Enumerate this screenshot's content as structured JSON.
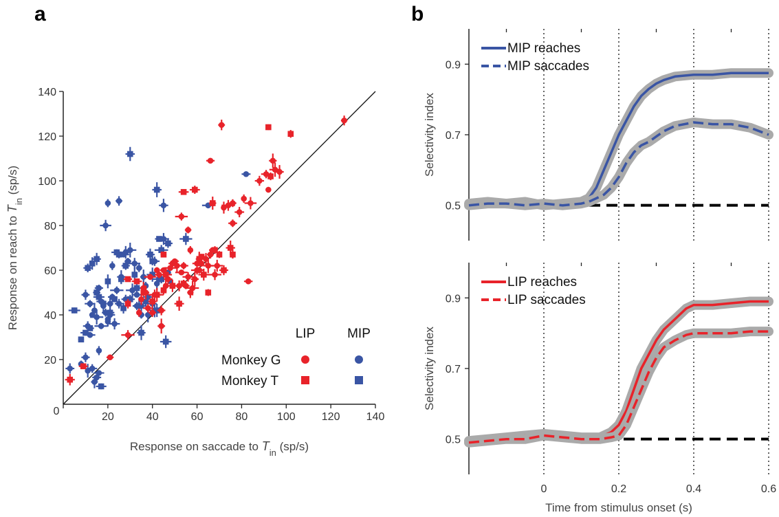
{
  "colors": {
    "lip": "#e8232a",
    "mip": "#3a55a4",
    "band": "#aaaaaa",
    "ref": "#000000"
  },
  "panel_a": {
    "letter": "a"
  },
  "panel_b": {
    "letter": "b"
  },
  "chart_data": [
    {
      "type": "scatter",
      "title": "",
      "xlabel": {
        "prefix": "Response on saccade to ",
        "var": "T",
        "sub": "in",
        "suffix": " (sp/s)"
      },
      "ylabel": {
        "prefix": "Response on reach to ",
        "var": "T",
        "sub": "in",
        "suffix": " (sp/s)"
      },
      "xlim": [
        0,
        140
      ],
      "ylim": [
        0,
        140
      ],
      "xticks": [
        0,
        20,
        40,
        60,
        80,
        100,
        120,
        140
      ],
      "yticks": [
        20,
        40,
        60,
        80,
        100,
        120,
        140
      ],
      "origin_label": "0",
      "unity_line": true,
      "legend": {
        "col_headers": [
          "LIP",
          "MIP"
        ],
        "rows": [
          {
            "label": "Monkey G",
            "marker": "circle"
          },
          {
            "label": "Monkey T",
            "marker": "square"
          }
        ],
        "placement": "bottom-right"
      },
      "series": [
        {
          "area": "MIP",
          "monkey": "G",
          "marker": "circle",
          "points": [
            [
              3,
              16
            ],
            [
              8,
              18
            ],
            [
              10,
              21
            ],
            [
              11,
              15
            ],
            [
              13,
              16
            ],
            [
              14,
              10
            ],
            [
              16,
              14
            ],
            [
              15,
              12
            ],
            [
              12,
              31
            ],
            [
              11,
              35
            ],
            [
              13,
              40
            ],
            [
              15,
              39
            ],
            [
              16,
              24
            ],
            [
              17,
              35
            ],
            [
              10,
              49
            ],
            [
              12,
              45
            ],
            [
              14,
              42
            ],
            [
              16,
              52
            ],
            [
              17,
              46
            ],
            [
              18,
              44
            ],
            [
              19,
              41
            ],
            [
              20,
              38
            ],
            [
              21,
              45
            ],
            [
              22,
              48
            ],
            [
              21,
              40
            ],
            [
              19,
              80
            ],
            [
              20,
              37
            ],
            [
              22,
              48
            ],
            [
              22,
              62
            ],
            [
              23,
              36
            ],
            [
              24,
              51
            ],
            [
              25,
              45
            ],
            [
              26,
              57
            ],
            [
              28,
              47
            ],
            [
              29,
              64
            ],
            [
              27,
              67
            ],
            [
              28,
              68
            ],
            [
              30,
              69
            ],
            [
              31,
              51
            ],
            [
              32,
              63
            ],
            [
              33,
              49
            ],
            [
              33,
              44
            ],
            [
              34,
              61
            ],
            [
              35,
              44
            ],
            [
              36,
              57
            ],
            [
              37,
              53
            ],
            [
              38,
              48
            ],
            [
              38,
              40
            ],
            [
              40,
              45
            ],
            [
              41,
              64
            ],
            [
              42,
              54
            ],
            [
              43,
              56
            ],
            [
              44,
              35
            ],
            [
              45,
              74
            ],
            [
              41,
              42
            ],
            [
              36,
              52
            ],
            [
              47,
              59
            ],
            [
              48,
              55
            ],
            [
              45,
              89
            ],
            [
              65,
              89
            ],
            [
              82,
              103
            ],
            [
              25,
              91
            ],
            [
              20,
              90
            ],
            [
              35,
              40
            ]
          ]
        },
        {
          "area": "MIP",
          "monkey": "T",
          "marker": "square",
          "points": [
            [
              5,
              42
            ],
            [
              8,
              29
            ],
            [
              10,
              32
            ],
            [
              12,
              34
            ],
            [
              11,
              61
            ],
            [
              13,
              63
            ],
            [
              15,
              65
            ],
            [
              15,
              50
            ],
            [
              16,
              48
            ],
            [
              18,
              45
            ],
            [
              20,
              55
            ],
            [
              23,
              47
            ],
            [
              25,
              67
            ],
            [
              27,
              43
            ],
            [
              28,
              62
            ],
            [
              30,
              112
            ],
            [
              30,
              47
            ],
            [
              32,
              58
            ],
            [
              33,
              52
            ],
            [
              34,
              44
            ],
            [
              35,
              32
            ],
            [
              37,
              46
            ],
            [
              39,
              67
            ],
            [
              40,
              58
            ],
            [
              42,
              96
            ],
            [
              42,
              42
            ],
            [
              43,
              74
            ],
            [
              44,
              69
            ],
            [
              44,
              56
            ],
            [
              46,
              28
            ],
            [
              47,
              72
            ],
            [
              55,
              74
            ],
            [
              40,
              64
            ],
            [
              21,
              41
            ],
            [
              17,
              8
            ],
            [
              24,
              68
            ],
            [
              26,
              56
            ]
          ]
        },
        {
          "area": "LIP",
          "monkey": "G",
          "marker": "circle",
          "points": [
            [
              21,
              21
            ],
            [
              29,
              31
            ],
            [
              34,
              41
            ],
            [
              35,
              47
            ],
            [
              36,
              52
            ],
            [
              37,
              50
            ],
            [
              38,
              43
            ],
            [
              39,
              57
            ],
            [
              40,
              41
            ],
            [
              41,
              49
            ],
            [
              42,
              60
            ],
            [
              43,
              58
            ],
            [
              44,
              42
            ],
            [
              45,
              60
            ],
            [
              46,
              53
            ],
            [
              47,
              56
            ],
            [
              48,
              61
            ],
            [
              49,
              63
            ],
            [
              50,
              64
            ],
            [
              51,
              62
            ],
            [
              53,
              59
            ],
            [
              54,
              62
            ],
            [
              55,
              53
            ],
            [
              56,
              57
            ],
            [
              57,
              50
            ],
            [
              58,
              52
            ],
            [
              59,
              56
            ],
            [
              60,
              60
            ],
            [
              62,
              63
            ],
            [
              64,
              65
            ],
            [
              65,
              62
            ],
            [
              66,
              67
            ],
            [
              67,
              69
            ],
            [
              68,
              58
            ],
            [
              69,
              62
            ],
            [
              71,
              125
            ],
            [
              72,
              88
            ],
            [
              74,
              89
            ],
            [
              76,
              90
            ],
            [
              79,
              86
            ],
            [
              81,
              92
            ],
            [
              84,
              90
            ],
            [
              88,
              100
            ],
            [
              91,
              103
            ],
            [
              92,
              96
            ],
            [
              94,
              109
            ],
            [
              95,
              105
            ],
            [
              97,
              104
            ],
            [
              66,
              109
            ],
            [
              53,
              84
            ],
            [
              56,
              78
            ],
            [
              57,
              69
            ],
            [
              44,
              35
            ],
            [
              52,
              53
            ],
            [
              60,
              63
            ],
            [
              83,
              55
            ],
            [
              76,
              81
            ],
            [
              126,
              127
            ],
            [
              61,
              60
            ]
          ]
        },
        {
          "area": "LIP",
          "monkey": "T",
          "marker": "square",
          "points": [
            [
              3,
              11
            ],
            [
              9,
              17
            ],
            [
              29,
              45
            ],
            [
              29,
              56
            ],
            [
              33,
              55
            ],
            [
              36,
              50
            ],
            [
              40,
              46
            ],
            [
              42,
              49
            ],
            [
              45,
              67
            ],
            [
              46,
              58
            ],
            [
              49,
              53
            ],
            [
              52,
              45
            ],
            [
              54,
              54
            ],
            [
              54,
              95
            ],
            [
              59,
              96
            ],
            [
              61,
              65
            ],
            [
              62,
              66
            ],
            [
              63,
              58
            ],
            [
              65,
              50
            ],
            [
              68,
              69
            ],
            [
              70,
              67
            ],
            [
              72,
              60
            ],
            [
              75,
              70
            ],
            [
              76,
              67
            ],
            [
              92,
              124
            ],
            [
              93,
              102
            ],
            [
              102,
              121
            ],
            [
              45,
              51
            ],
            [
              67,
              90
            ]
          ]
        }
      ]
    },
    {
      "type": "line",
      "title": "",
      "xlabel": "Time from stimulus onset (s)",
      "ylabel": "Selectivity index",
      "xlim": [
        -0.2,
        0.6
      ],
      "ylim": [
        0.4,
        1.0
      ],
      "xticks": [
        0,
        0.2,
        0.4,
        0.6
      ],
      "xtick_labels": [
        "0",
        "0.2",
        "0.4",
        "0.6"
      ],
      "yticks": [
        0.5,
        0.7,
        0.9
      ],
      "ytick_labels": [
        "0.5",
        "0.7",
        "0.9"
      ],
      "vertical_dotted_lines": [
        0,
        0.2,
        0.4,
        0.6
      ],
      "reference_line": 0.5,
      "legend_placement": "top-left",
      "series": [
        {
          "name": "MIP reaches",
          "style": "solid",
          "color": "mip",
          "x": [
            -0.2,
            -0.15,
            -0.1,
            -0.05,
            0,
            0.05,
            0.1,
            0.12,
            0.14,
            0.16,
            0.18,
            0.2,
            0.22,
            0.24,
            0.26,
            0.28,
            0.3,
            0.32,
            0.35,
            0.4,
            0.45,
            0.5,
            0.55,
            0.6
          ],
          "y": [
            0.505,
            0.51,
            0.505,
            0.51,
            0.5,
            0.505,
            0.51,
            0.52,
            0.55,
            0.6,
            0.65,
            0.7,
            0.74,
            0.78,
            0.81,
            0.83,
            0.845,
            0.855,
            0.865,
            0.87,
            0.87,
            0.875,
            0.875,
            0.875
          ]
        },
        {
          "name": "MIP saccades",
          "style": "dashed",
          "color": "mip",
          "x": [
            -0.2,
            -0.15,
            -0.1,
            -0.05,
            0,
            0.05,
            0.1,
            0.12,
            0.14,
            0.16,
            0.18,
            0.2,
            0.22,
            0.24,
            0.26,
            0.28,
            0.3,
            0.32,
            0.35,
            0.4,
            0.45,
            0.5,
            0.55,
            0.6
          ],
          "y": [
            0.5,
            0.505,
            0.505,
            0.5,
            0.505,
            0.5,
            0.505,
            0.51,
            0.52,
            0.53,
            0.55,
            0.58,
            0.62,
            0.65,
            0.67,
            0.68,
            0.695,
            0.71,
            0.725,
            0.735,
            0.73,
            0.73,
            0.72,
            0.7
          ]
        },
        {
          "name": "LIP reaches",
          "style": "solid",
          "color": "lip",
          "x": [
            -0.2,
            -0.15,
            -0.1,
            -0.05,
            0,
            0.05,
            0.1,
            0.15,
            0.18,
            0.2,
            0.22,
            0.24,
            0.26,
            0.28,
            0.3,
            0.32,
            0.35,
            0.38,
            0.4,
            0.45,
            0.5,
            0.55,
            0.6
          ],
          "y": [
            0.495,
            0.5,
            0.505,
            0.51,
            0.515,
            0.51,
            0.505,
            0.505,
            0.52,
            0.54,
            0.58,
            0.64,
            0.7,
            0.74,
            0.78,
            0.81,
            0.84,
            0.87,
            0.88,
            0.88,
            0.885,
            0.89,
            0.89
          ]
        },
        {
          "name": "LIP saccades",
          "style": "dashed",
          "color": "lip",
          "x": [
            -0.2,
            -0.15,
            -0.1,
            -0.05,
            0,
            0.05,
            0.1,
            0.15,
            0.18,
            0.2,
            0.22,
            0.24,
            0.26,
            0.28,
            0.3,
            0.32,
            0.35,
            0.38,
            0.4,
            0.45,
            0.5,
            0.55,
            0.6
          ],
          "y": [
            0.49,
            0.495,
            0.5,
            0.5,
            0.51,
            0.505,
            0.5,
            0.5,
            0.505,
            0.51,
            0.54,
            0.59,
            0.64,
            0.69,
            0.73,
            0.76,
            0.78,
            0.795,
            0.8,
            0.8,
            0.8,
            0.805,
            0.805
          ]
        }
      ]
    }
  ]
}
